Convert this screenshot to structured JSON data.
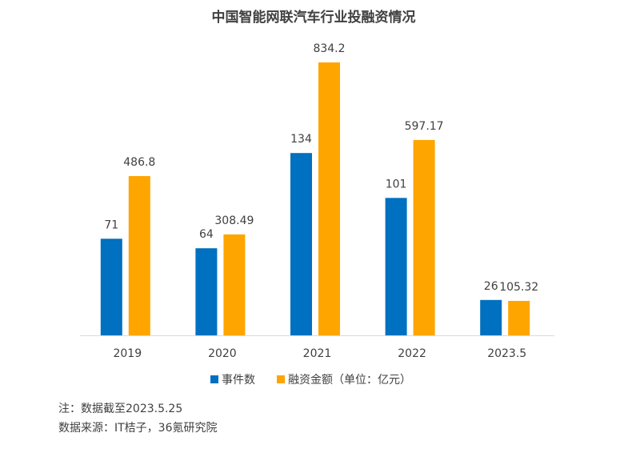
{
  "chart_data": {
    "type": "bar",
    "title": "中国智能网联汽车行业投融资情况",
    "categories": [
      "2019",
      "2020",
      "2021",
      "2022",
      "2023.5"
    ],
    "series": [
      {
        "name": "事件数",
        "color": "#0070c0",
        "values": [
          71,
          64,
          134,
          101,
          26
        ],
        "labels": [
          "71",
          "64",
          "134",
          "101",
          "26"
        ]
      },
      {
        "name": "融资金额（单位：亿元）",
        "color": "#ffa500",
        "values": [
          486.8,
          308.49,
          834.2,
          597.17,
          105.32
        ],
        "labels": [
          "486.8",
          "308.49",
          "834.2",
          "597.17",
          "105.32"
        ]
      }
    ],
    "legend_position": "bottom",
    "grid": false
  },
  "notes": {
    "note": "注：数据截至2023.5.25",
    "source": "数据来源：IT桔子，36氪研究院"
  }
}
